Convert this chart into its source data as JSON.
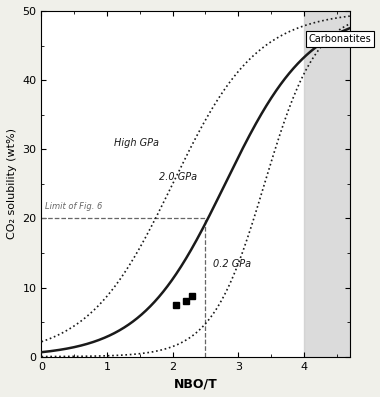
{
  "xlim": [
    0.0,
    4.7
  ],
  "ylim": [
    0.0,
    50.0
  ],
  "xticks": [
    0.0,
    1.0,
    2.0,
    3.0,
    4.0
  ],
  "yticks": [
    0.0,
    10.0,
    20.0,
    30.0,
    40.0,
    50.0
  ],
  "xlabel": "NBO/T",
  "ylabel": "CO₂ solubility (wt%)",
  "carbonatites_xstart": 4.0,
  "carbonatites_label": "Carbonatites",
  "limit_of_fig6_x": 2.5,
  "limit_of_fig6_y": 20.0,
  "limit_label": "Limit of Fig. 6",
  "data_points": [
    [
      2.05,
      7.5
    ],
    [
      2.2,
      8.0
    ],
    [
      2.3,
      8.8
    ]
  ],
  "bg_color": "#f0f0ea",
  "plot_bg_color": "#ffffff",
  "line_color": "#1a1a1a",
  "dashed_line_color": "#666666",
  "shade_color": "#c8c8c8",
  "label_high_gpa": "High GPa",
  "label_2gpa": "2.0 GPa",
  "label_02gpa": "0.2 GPa"
}
